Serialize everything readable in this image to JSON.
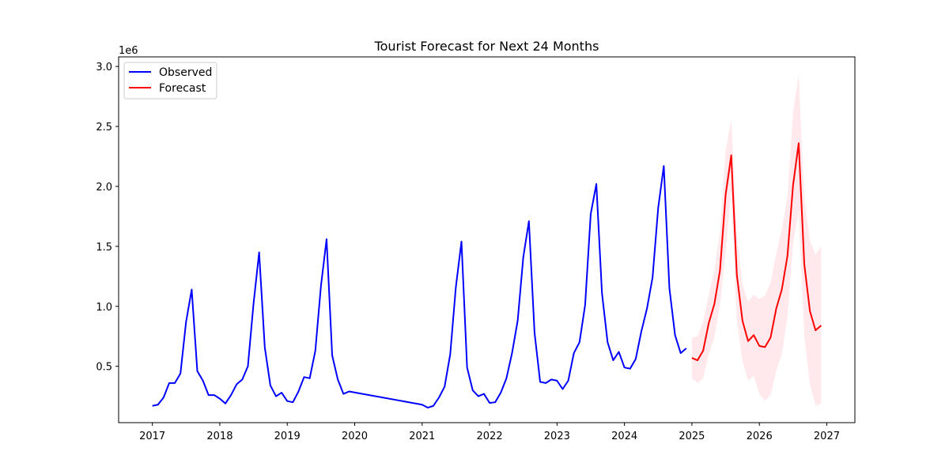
{
  "chart_data": {
    "type": "line",
    "title": "Tourist Forecast for Next 24 Months",
    "xlabel": "",
    "ylabel": "",
    "y_offset_label": "1e6",
    "xlim": [
      "2016-07-01",
      "2027-06-01"
    ],
    "ylim": [
      0.03,
      3.08
    ],
    "x_ticks": [
      "2017",
      "2018",
      "2019",
      "2020",
      "2021",
      "2022",
      "2023",
      "2024",
      "2025",
      "2026",
      "2027"
    ],
    "y_ticks": [
      "0.5",
      "1.0",
      "1.5",
      "2.0",
      "2.5",
      "3.0"
    ],
    "grid": false,
    "legend": {
      "position": "top-left",
      "entries": [
        "Observed",
        "Forecast"
      ]
    },
    "colors": {
      "observed": "#0000ff",
      "forecast": "#ff0000",
      "confidence_band": "#ffc0cb"
    },
    "series": [
      {
        "name": "Observed",
        "x": [
          "2017-01",
          "2017-02",
          "2017-03",
          "2017-04",
          "2017-05",
          "2017-06",
          "2017-07",
          "2017-08",
          "2017-09",
          "2017-10",
          "2017-11",
          "2017-12",
          "2018-01",
          "2018-02",
          "2018-03",
          "2018-04",
          "2018-05",
          "2018-06",
          "2018-07",
          "2018-08",
          "2018-09",
          "2018-10",
          "2018-11",
          "2018-12",
          "2019-01",
          "2019-02",
          "2019-03",
          "2019-04",
          "2019-05",
          "2019-06",
          "2019-07",
          "2019-08",
          "2019-09",
          "2019-10",
          "2019-11",
          "2019-12",
          "2021-01",
          "2021-02",
          "2021-03",
          "2021-04",
          "2021-05",
          "2021-06",
          "2021-07",
          "2021-08",
          "2021-09",
          "2021-10",
          "2021-11",
          "2021-12",
          "2022-01",
          "2022-02",
          "2022-03",
          "2022-04",
          "2022-05",
          "2022-06",
          "2022-07",
          "2022-08",
          "2022-09",
          "2022-10",
          "2022-11",
          "2022-12",
          "2023-01",
          "2023-02",
          "2023-03",
          "2023-04",
          "2023-05",
          "2023-06",
          "2023-07",
          "2023-08",
          "2023-09",
          "2023-10",
          "2023-11",
          "2023-12",
          "2024-01",
          "2024-02",
          "2024-03",
          "2024-04",
          "2024-05",
          "2024-06",
          "2024-07",
          "2024-08",
          "2024-09",
          "2024-10",
          "2024-11",
          "2024-12"
        ],
        "values": [
          0.17,
          0.18,
          0.24,
          0.36,
          0.36,
          0.44,
          0.87,
          1.14,
          0.46,
          0.38,
          0.26,
          0.26,
          0.23,
          0.19,
          0.26,
          0.35,
          0.39,
          0.5,
          1.02,
          1.45,
          0.66,
          0.34,
          0.25,
          0.28,
          0.21,
          0.2,
          0.29,
          0.41,
          0.4,
          0.63,
          1.17,
          1.56,
          0.59,
          0.39,
          0.27,
          0.29,
          0.18,
          0.155,
          0.17,
          0.24,
          0.33,
          0.6,
          1.16,
          1.54,
          0.49,
          0.3,
          0.25,
          0.27,
          0.195,
          0.2,
          0.28,
          0.4,
          0.61,
          0.88,
          1.41,
          1.71,
          0.78,
          0.37,
          0.36,
          0.39,
          0.38,
          0.31,
          0.38,
          0.61,
          0.7,
          1.01,
          1.77,
          2.02,
          1.11,
          0.7,
          0.55,
          0.62,
          0.49,
          0.48,
          0.56,
          0.79,
          0.98,
          1.24,
          1.82,
          2.17,
          1.15,
          0.76,
          0.61,
          0.65
        ]
      },
      {
        "name": "Forecast",
        "x": [
          "2025-01",
          "2025-02",
          "2025-03",
          "2025-04",
          "2025-05",
          "2025-06",
          "2025-07",
          "2025-08",
          "2025-09",
          "2025-10",
          "2025-11",
          "2025-12",
          "2026-01",
          "2026-02",
          "2026-03",
          "2026-04",
          "2026-05",
          "2026-06",
          "2026-07",
          "2026-08",
          "2026-09",
          "2026-10",
          "2026-11",
          "2026-12"
        ],
        "values": [
          0.57,
          0.55,
          0.63,
          0.86,
          1.02,
          1.3,
          1.93,
          2.26,
          1.26,
          0.88,
          0.71,
          0.76,
          0.67,
          0.66,
          0.74,
          0.98,
          1.14,
          1.42,
          2.01,
          2.36,
          1.35,
          0.96,
          0.8,
          0.84
        ],
        "lower": [
          0.4,
          0.36,
          0.4,
          0.6,
          0.74,
          1.01,
          1.45,
          1.95,
          0.89,
          0.54,
          0.38,
          0.42,
          0.27,
          0.21,
          0.26,
          0.46,
          0.6,
          0.91,
          1.52,
          1.79,
          0.75,
          0.35,
          0.17,
          0.19
        ],
        "upper": [
          0.74,
          0.75,
          0.87,
          1.1,
          1.3,
          1.62,
          2.3,
          2.56,
          1.6,
          1.18,
          1.04,
          1.1,
          1.06,
          1.09,
          1.2,
          1.44,
          1.64,
          1.92,
          2.62,
          2.93,
          1.9,
          1.55,
          1.43,
          1.5
        ]
      }
    ]
  }
}
